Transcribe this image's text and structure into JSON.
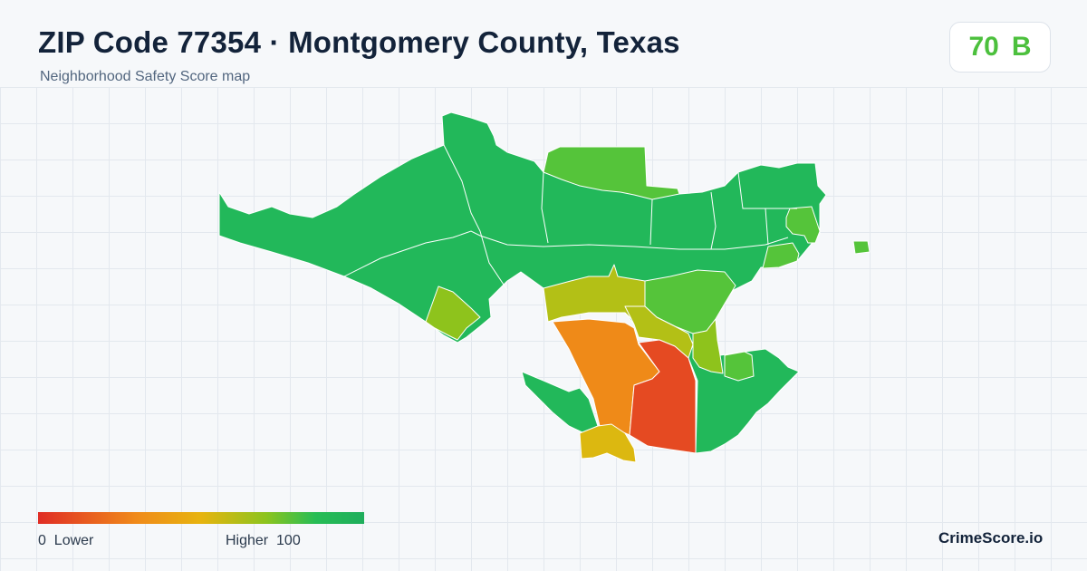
{
  "header": {
    "title": "ZIP Code 77354 · Montgomery County, Texas",
    "subtitle": "Neighborhood Safety Score map"
  },
  "score": {
    "value": "70",
    "grade": "B",
    "color": "#4cc03d"
  },
  "legend": {
    "min": "0",
    "low_label": "Lower",
    "high_label": "Higher",
    "max": "100",
    "colors": [
      "#e02d25",
      "#f08a1a",
      "#e7b40f",
      "#8cc41e",
      "#27bd55",
      "#1fae5c"
    ]
  },
  "brand": "CrimeScore.io",
  "map_colors": {
    "dark_green": "#22b85a",
    "light_green": "#55c43a",
    "yellow_green": "#8ec31c",
    "olive": "#b3c016",
    "yellow": "#dcb810",
    "orange": "#ef8a18",
    "red": "#e54a22"
  }
}
